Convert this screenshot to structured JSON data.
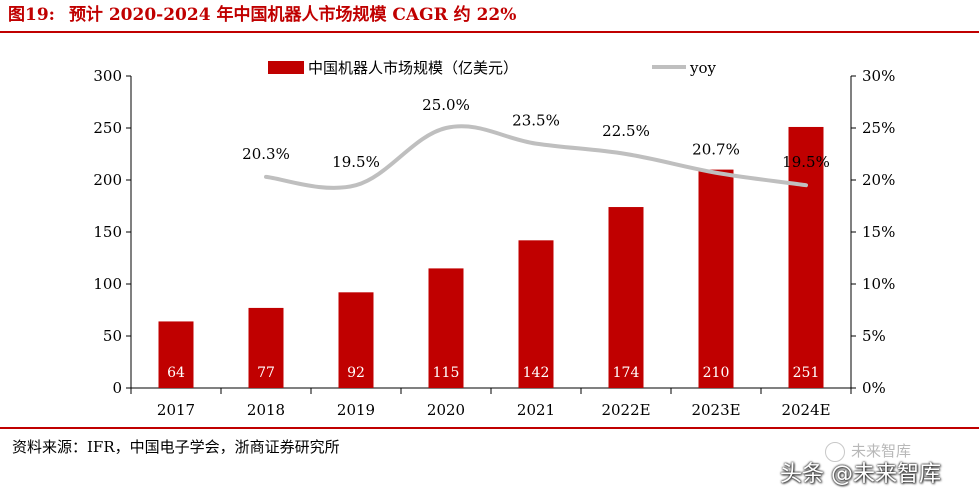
{
  "title": {
    "number": "图19:",
    "text": "预计 2020-2024 年中国机器人市场规模 CAGR 约 22%"
  },
  "source": "资料来源：IFR，中国电子学会，浙商证券研究所",
  "watermark": {
    "small": "未来智库",
    "big": "头条 @未来智库"
  },
  "chart_data": {
    "type": "bar",
    "categories": [
      "2017",
      "2018",
      "2019",
      "2020",
      "2021",
      "2022E",
      "2023E",
      "2024E"
    ],
    "series": [
      {
        "name": "中国机器人市场规模（亿美元）",
        "type": "bar",
        "axis": "left",
        "color": "#c00000",
        "values": [
          64,
          77,
          92,
          115,
          142,
          174,
          210,
          251
        ],
        "labels": [
          "64",
          "77",
          "92",
          "115",
          "142",
          "174",
          "210",
          "251"
        ]
      },
      {
        "name": "yoy",
        "type": "line",
        "axis": "right",
        "color": "#bfbfbf",
        "values": [
          null,
          20.3,
          19.5,
          25.0,
          23.5,
          22.5,
          20.7,
          19.5
        ],
        "labels": [
          "",
          "20.3%",
          "19.5%",
          "25.0%",
          "23.5%",
          "22.5%",
          "20.7%",
          "19.5%"
        ]
      }
    ],
    "y_left": {
      "min": 0,
      "max": 300,
      "ticks": [
        0,
        50,
        100,
        150,
        200,
        250,
        300
      ],
      "tick_labels": [
        "0",
        "50",
        "100",
        "150",
        "200",
        "250",
        "300"
      ]
    },
    "y_right": {
      "min": 0,
      "max": 30,
      "ticks": [
        0,
        5,
        10,
        15,
        20,
        25,
        30
      ],
      "tick_labels": [
        "0%",
        "5%",
        "10%",
        "15%",
        "20%",
        "25%",
        "30%"
      ]
    },
    "grid": false,
    "legend": "top"
  }
}
